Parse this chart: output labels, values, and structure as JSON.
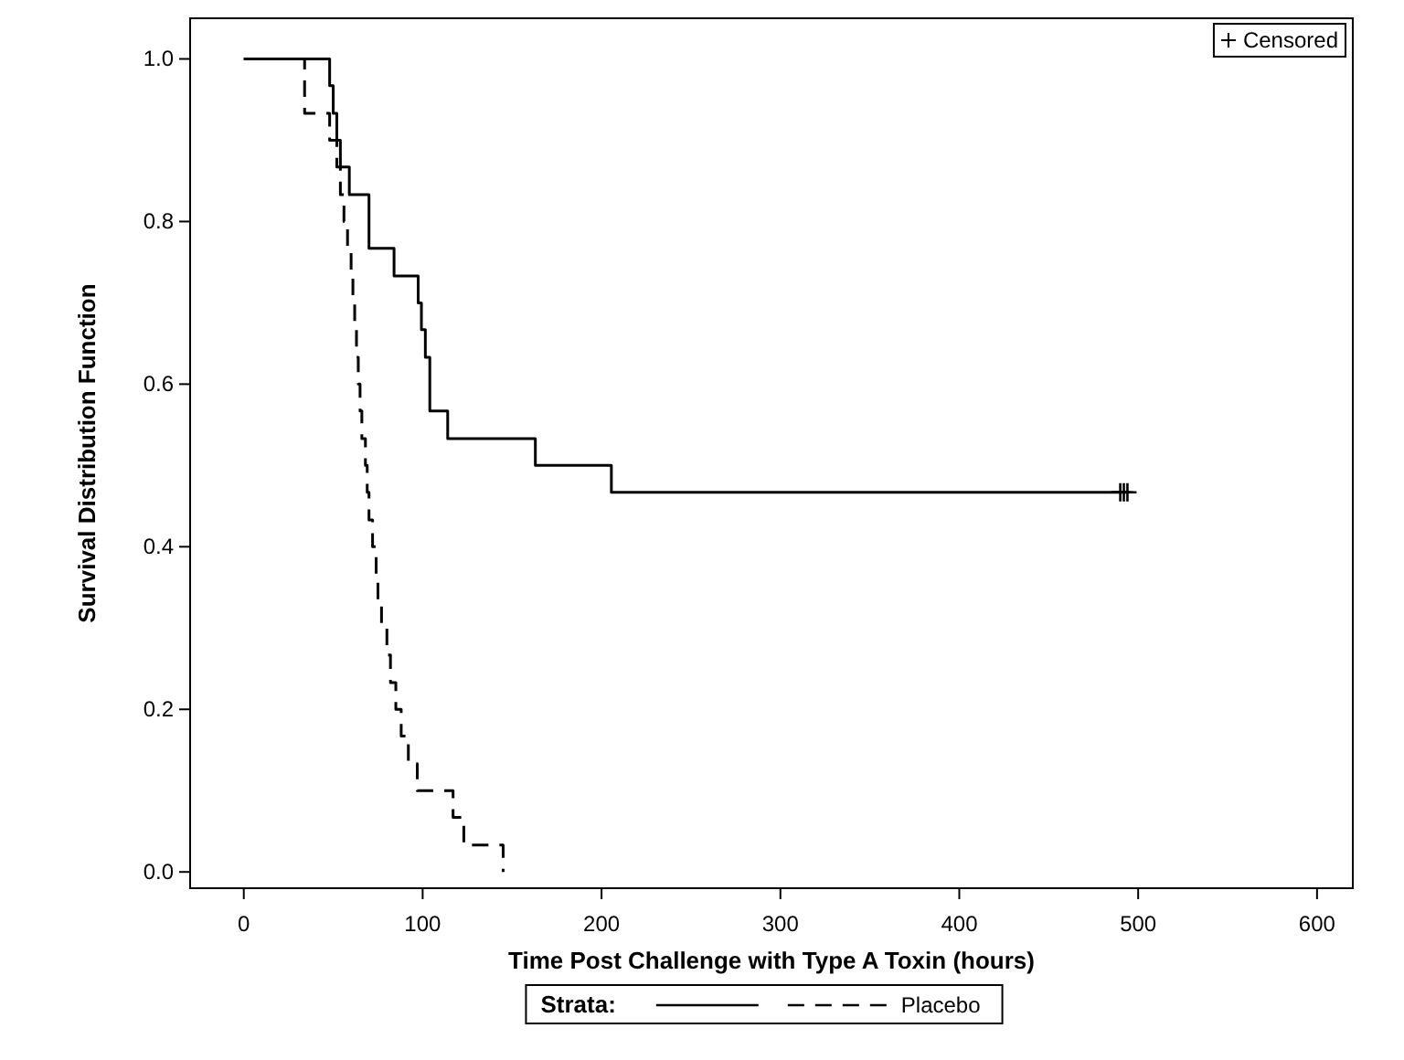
{
  "chart_data": {
    "type": "step",
    "xlabel": "Time Post Challenge with Type A Toxin (hours)",
    "ylabel": "Survival Distribution Function",
    "legend_title": "Strata:",
    "legend": "bottom",
    "xlim": [
      -30,
      620
    ],
    "ylim": [
      -0.02,
      1.05
    ],
    "xticks": [
      0,
      100,
      200,
      300,
      400,
      500,
      600
    ],
    "yticks": [
      {
        "value": 0,
        "label": "0.0"
      },
      {
        "value": 0.2,
        "label": "0.2"
      },
      {
        "value": 0.4,
        "label": "0.4"
      },
      {
        "value": 0.6,
        "label": "0.6"
      },
      {
        "value": 0.8,
        "label": "0.8"
      },
      {
        "value": 1,
        "label": "1.0"
      }
    ],
    "grid": false,
    "series": [
      {
        "color": "#000000",
        "line_style": "solid",
        "x": [
          0,
          48,
          50,
          52,
          54,
          59,
          70,
          84,
          97.5,
          99.3,
          101.5,
          104,
          114,
          163,
          205.5,
          495
        ],
        "values": [
          1,
          0.967,
          0.933,
          0.9,
          0.867,
          0.833,
          0.767,
          0.733,
          0.7,
          0.667,
          0.633,
          0.567,
          0.533,
          0.5,
          0.467,
          0.467
        ]
      },
      {
        "name": "Placebo",
        "color": "#000000",
        "line_style": "dashed",
        "x": [
          0,
          34,
          48,
          52,
          54,
          56,
          58,
          60,
          61,
          62,
          63,
          64,
          65,
          66,
          68,
          69,
          70,
          72,
          74,
          75,
          77,
          80,
          82,
          85,
          88,
          92,
          97,
          117,
          123,
          145
        ],
        "values": [
          1,
          0.933,
          0.9,
          0.867,
          0.833,
          0.8,
          0.767,
          0.733,
          0.7,
          0.667,
          0.633,
          0.6,
          0.567,
          0.533,
          0.5,
          0.467,
          0.433,
          0.4,
          0.367,
          0.333,
          0.3,
          0.267,
          0.233,
          0.2,
          0.167,
          0.133,
          0.1,
          0.067,
          0.033,
          0
        ]
      },
      {
        "name": "Censored",
        "type": "scatter",
        "marker": "cross",
        "color": "#000000",
        "x": [
          490,
          492,
          494
        ],
        "values": [
          0.467,
          0.467,
          0.467
        ]
      }
    ]
  }
}
